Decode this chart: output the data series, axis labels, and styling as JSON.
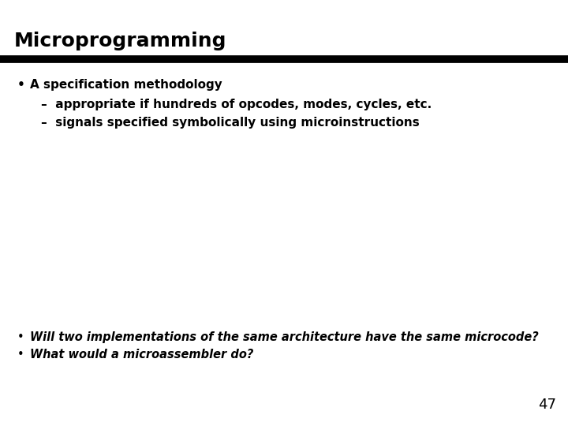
{
  "title": "Microprogramming",
  "title_fontsize": 18,
  "title_color": "#000000",
  "title_weight": "bold",
  "bar_color": "#000000",
  "background_color": "#ffffff",
  "bullet1": "A specification methodology",
  "sub1a": "appropriate if hundreds of opcodes, modes, cycles, etc.",
  "sub1b": "signals specified symbolically using microinstructions",
  "italic1": "Will two implementations of the same architecture have the same microcode?",
  "italic2": "What would a microassembler do?",
  "page_number": "47",
  "bullet_fontsize": 11,
  "sub_fontsize": 11,
  "italic_fontsize": 10.5,
  "page_fontsize": 13
}
